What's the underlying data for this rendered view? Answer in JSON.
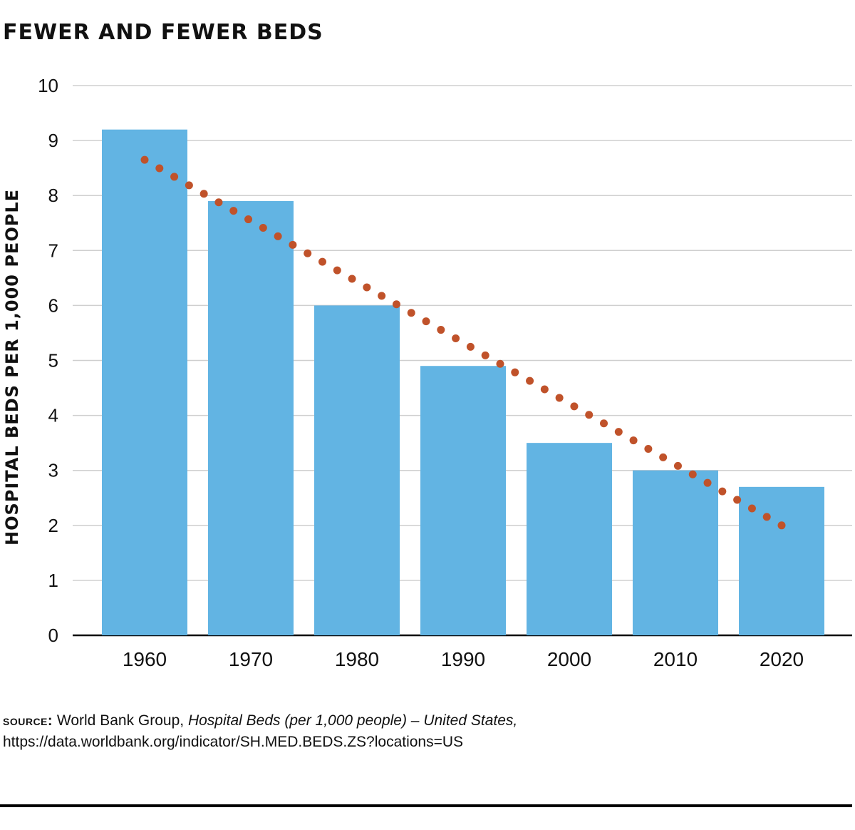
{
  "chart_data": {
    "type": "bar",
    "title": "FEWER AND FEWER BEDS",
    "ylabel": "HOSPITAL BEDS PER 1,000 PEOPLE",
    "xlabel": "",
    "categories": [
      "1960",
      "1970",
      "1980",
      "1990",
      "2000",
      "2010",
      "2020"
    ],
    "values": [
      9.2,
      7.9,
      6.0,
      4.9,
      3.5,
      3.0,
      2.7
    ],
    "ylim": [
      0,
      10
    ],
    "yticks": [
      "0",
      "1",
      "2",
      "3",
      "4",
      "5",
      "6",
      "7",
      "8",
      "9",
      "10"
    ],
    "grid": true,
    "legend": "none",
    "trendline": {
      "style": "dotted",
      "start": {
        "category": "1960",
        "y": 8.65
      },
      "end": {
        "category": "2020",
        "y": 2.0
      }
    },
    "colors": {
      "bar": "#62b4e3",
      "trend": "#c0522a",
      "grid": "#cfcfcf",
      "axis": "#000000"
    }
  },
  "source": {
    "label": "source:",
    "org": "World Bank Group,",
    "publication": "Hospital Beds (per 1,000 people) – United States,",
    "url": "https://data.worldbank.org/indicator/SH.MED.BEDS.ZS?locations=US"
  }
}
